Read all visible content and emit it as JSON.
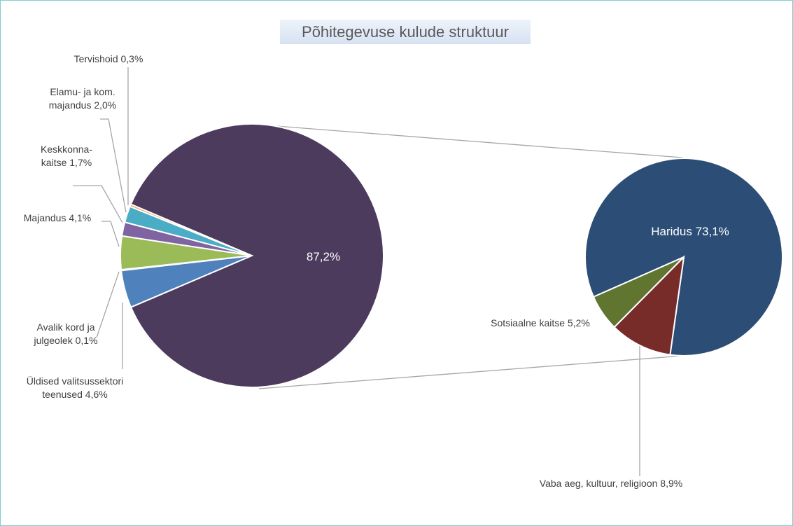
{
  "chart_data": {
    "type": "pie-of-pie",
    "title": "Põhitegevuse kulude struktuur",
    "categories": [
      "Tervishoid",
      "Elamu- ja kom. majandus",
      "Keskkonna-kaitse",
      "Majandus",
      "Avalik kord ja julgeolek",
      "Üldised valitsussektori teenused",
      null
    ],
    "values": [
      0.3,
      2.0,
      1.7,
      4.1,
      0.1,
      4.6,
      87.2
    ],
    "value_labels": [
      "0,3%",
      "2,0%",
      "1,7%",
      "4,1%",
      "0,1%",
      "4,6%",
      "87,2%"
    ],
    "colors": [
      "#f79646",
      "#4bacc6",
      "#8064a2",
      "#9bbb59",
      "#c0504d",
      "#4f81bd",
      "#4d3b5e"
    ],
    "secondary": {
      "categories": [
        "Haridus",
        "Sotsiaalne kaitse",
        "Vaba aeg, kultuur, religioon"
      ],
      "values": [
        73.1,
        5.2,
        8.9
      ],
      "value_labels": [
        "73,1%",
        "5,2%",
        "8,9%"
      ],
      "colors": [
        "#2c4d75",
        "#5f7530",
        "#772c2a"
      ]
    }
  }
}
